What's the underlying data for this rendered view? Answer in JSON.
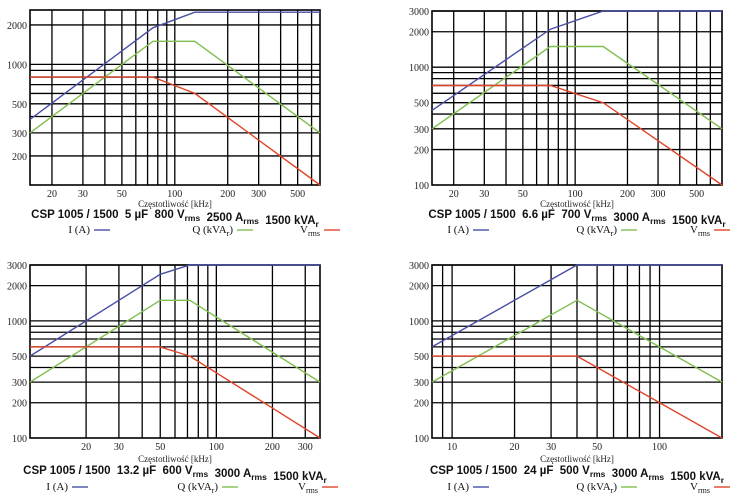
{
  "colors": {
    "current": "#4a4fa8",
    "power": "#7fbf4f",
    "voltage": "#e0452a",
    "grid": "#000000"
  },
  "chart_data": [
    {
      "type": "line",
      "title": {
        "model": "CSP 1005 / 1500",
        "capacitance": "5 µF",
        "voltage": "800 V",
        "voltage_sub": "rms",
        "current": "2500 A",
        "current_sub": "rms",
        "power": "1500 kVA",
        "power_sub": "r"
      },
      "xlabel": "Częstotliwość [kHz]",
      "xscale": "log",
      "yscale": "log",
      "xlim": [
        15,
        670
      ],
      "ylim": [
        120,
        2600
      ],
      "xgrid": [
        20,
        30,
        40,
        50,
        60,
        70,
        80,
        90,
        100,
        200,
        300,
        400,
        500,
        600
      ],
      "xticklabels": [
        20,
        30,
        50,
        100,
        200,
        300,
        500
      ],
      "ygrid": [
        200,
        300,
        400,
        500,
        600,
        700,
        800,
        900,
        1000,
        2000
      ],
      "yticklabels": [
        200,
        300,
        500,
        1000,
        2000
      ],
      "grid": true,
      "legend": [
        {
          "label": "I (A)",
          "sub": "",
          "series": "current"
        },
        {
          "label": "Q (kVA",
          "sub": "r",
          "suffix": ")",
          "series": "power"
        },
        {
          "label": "V",
          "sub": "rms",
          "series": "voltage"
        }
      ],
      "series": [
        {
          "name": "I (A)",
          "key": "current",
          "x": [
            15,
            75,
            130,
            670
          ],
          "y": [
            380,
            1900,
            2500,
            2500
          ]
        },
        {
          "name": "Q (kVAr)",
          "key": "power",
          "x": [
            15,
            75,
            130,
            670
          ],
          "y": [
            300,
            1500,
            1500,
            300
          ]
        },
        {
          "name": "Vrms",
          "key": "voltage",
          "x": [
            15,
            75,
            130,
            670
          ],
          "y": [
            800,
            800,
            600,
            120
          ]
        }
      ]
    },
    {
      "type": "line",
      "title": {
        "model": "CSP 1005 / 1500",
        "capacitance": "6.6 µF",
        "voltage": "700 V",
        "voltage_sub": "rms",
        "current": "3000 A",
        "current_sub": "rms",
        "power": "1500 kVA",
        "power_sub": "r"
      },
      "xlabel": "Częstotliwość [kHz]",
      "xscale": "log",
      "yscale": "log",
      "xlim": [
        15,
        700
      ],
      "ylim": [
        100,
        3000
      ],
      "xgrid": [
        20,
        30,
        40,
        50,
        60,
        70,
        80,
        90,
        100,
        200,
        300,
        400,
        500,
        600
      ],
      "xticklabels": [
        20,
        30,
        50,
        100,
        200,
        300,
        500
      ],
      "ygrid": [
        200,
        300,
        400,
        500,
        600,
        700,
        800,
        900,
        1000,
        2000,
        3000
      ],
      "yticklabels": [
        100,
        200,
        300,
        500,
        1000,
        2000,
        3000
      ],
      "grid": true,
      "legend": [
        {
          "label": "I (A)",
          "sub": "",
          "series": "current"
        },
        {
          "label": "Q (kVA",
          "sub": "r",
          "suffix": ")",
          "series": "power"
        },
        {
          "label": "V",
          "sub": "rms",
          "series": "voltage"
        }
      ],
      "series": [
        {
          "name": "I (A)",
          "key": "current",
          "x": [
            15,
            72,
            145,
            700
          ],
          "y": [
            430,
            2100,
            3000,
            3000
          ]
        },
        {
          "name": "Q (kVAr)",
          "key": "power",
          "x": [
            15,
            72,
            145,
            700
          ],
          "y": [
            300,
            1500,
            1500,
            300
          ]
        },
        {
          "name": "Vrms",
          "key": "voltage",
          "x": [
            15,
            72,
            145,
            700
          ],
          "y": [
            700,
            700,
            500,
            100
          ]
        }
      ]
    },
    {
      "type": "line",
      "title": {
        "model": "CSP 1005 / 1500",
        "capacitance": "13.2 µF",
        "voltage": "600 V",
        "voltage_sub": "rms",
        "current": "3000 A",
        "current_sub": "rms",
        "power": "1500 kVA",
        "power_sub": "r"
      },
      "xlabel": "Częstotliwość [kHz]",
      "xscale": "log",
      "yscale": "log",
      "xlim": [
        10,
        360
      ],
      "ylim": [
        100,
        3000
      ],
      "xgrid": [
        20,
        30,
        40,
        50,
        60,
        70,
        80,
        90,
        100,
        200,
        300
      ],
      "xticklabels": [
        20,
        30,
        50,
        100,
        200,
        300
      ],
      "ygrid": [
        200,
        300,
        400,
        500,
        600,
        700,
        800,
        900,
        1000,
        2000,
        3000
      ],
      "yticklabels": [
        100,
        200,
        300,
        500,
        1000,
        2000,
        3000
      ],
      "grid": true,
      "legend": [
        {
          "label": "I (A)",
          "sub": "",
          "series": "current"
        },
        {
          "label": "Q (kVA",
          "sub": "r",
          "suffix": ")",
          "series": "power"
        },
        {
          "label": "V",
          "sub": "rms",
          "series": "voltage"
        }
      ],
      "series": [
        {
          "name": "I (A)",
          "key": "current",
          "x": [
            10,
            50,
            72,
            360
          ],
          "y": [
            500,
            2500,
            3000,
            3000
          ]
        },
        {
          "name": "Q (kVAr)",
          "key": "power",
          "x": [
            10,
            50,
            72,
            360
          ],
          "y": [
            300,
            1500,
            1500,
            300
          ]
        },
        {
          "name": "Vrms",
          "key": "voltage",
          "x": [
            10,
            50,
            72,
            360
          ],
          "y": [
            600,
            600,
            500,
            100
          ]
        }
      ]
    },
    {
      "type": "line",
      "title": {
        "model": "CSP 1005 / 1500",
        "capacitance": "24 µF",
        "voltage": "500 V",
        "voltage_sub": "rms",
        "current": "3000 A",
        "current_sub": "rms",
        "power": "1500 kVA",
        "power_sub": "r"
      },
      "xlabel": "Częstotliwość [kHz]",
      "xscale": "log",
      "yscale": "log",
      "xlim": [
        8,
        200
      ],
      "ylim": [
        100,
        3000
      ],
      "xgrid": [
        9,
        10,
        20,
        30,
        40,
        50,
        60,
        70,
        80,
        90,
        100
      ],
      "xticklabels": [
        10,
        20,
        30,
        50,
        100
      ],
      "ygrid": [
        200,
        300,
        400,
        500,
        600,
        700,
        800,
        900,
        1000,
        2000,
        3000
      ],
      "yticklabels": [
        100,
        200,
        300,
        500,
        1000,
        2000,
        3000
      ],
      "grid": true,
      "legend": [
        {
          "label": "I (A)",
          "sub": "",
          "series": "current"
        },
        {
          "label": "Q (kVA",
          "sub": "r",
          "suffix": ")",
          "series": "power"
        },
        {
          "label": "V",
          "sub": "rms",
          "series": "voltage"
        }
      ],
      "series": [
        {
          "name": "I (A)",
          "key": "current",
          "x": [
            8,
            40,
            200
          ],
          "y": [
            600,
            3000,
            3000
          ]
        },
        {
          "name": "Q (kVAr)",
          "key": "power",
          "x": [
            8,
            40,
            200
          ],
          "y": [
            300,
            1500,
            300
          ]
        },
        {
          "name": "Vrms",
          "key": "voltage",
          "x": [
            8,
            40,
            200
          ],
          "y": [
            500,
            500,
            100
          ]
        }
      ]
    }
  ]
}
